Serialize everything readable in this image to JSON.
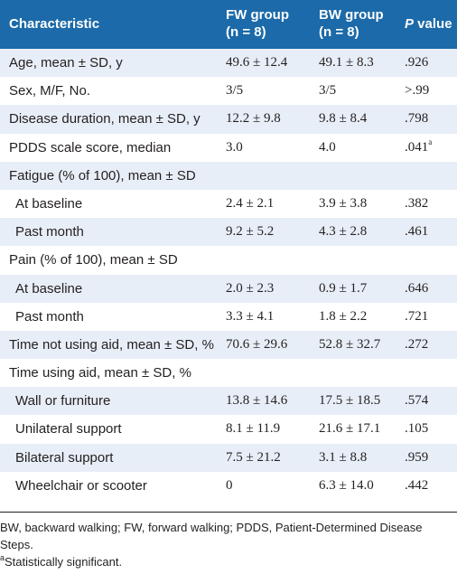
{
  "header": {
    "col1": "Characteristic",
    "col2_line1": "FW group",
    "col2_line2": "(n = 8)",
    "col3_line1": "BW group",
    "col3_line2": "(n = 8)",
    "col4_p": "P",
    "col4_rest": " value"
  },
  "rows": [
    {
      "label": "Age, mean ± SD, y",
      "fw": "49.6 ± 12.4",
      "bw": "49.1 ± 8.3",
      "p": ".926",
      "sup": ""
    },
    {
      "label": "Sex, M/F, No.",
      "fw": "3/5",
      "bw": "3/5",
      "p": ">.99",
      "sup": ""
    },
    {
      "label": "Disease duration, mean ± SD, y",
      "fw": "12.2 ± 9.8",
      "bw": "9.8 ± 8.4",
      "p": ".798",
      "sup": ""
    },
    {
      "label": "PDDS scale score, median",
      "fw": "3.0",
      "bw": "4.0",
      "p": ".041",
      "sup": "a"
    },
    {
      "label": "Fatigue (% of 100), mean ± SD",
      "fw": "",
      "bw": "",
      "p": "",
      "sup": ""
    },
    {
      "label": "At baseline",
      "fw": "2.4 ± 2.1",
      "bw": "3.9 ± 3.8",
      "p": ".382",
      "sup": ""
    },
    {
      "label": "Past month",
      "fw": "9.2 ± 5.2",
      "bw": "4.3 ± 2.8",
      "p": ".461",
      "sup": ""
    },
    {
      "label": "Pain (% of 100), mean ± SD",
      "fw": "",
      "bw": "",
      "p": "",
      "sup": ""
    },
    {
      "label": "At baseline",
      "fw": "2.0 ± 2.3",
      "bw": "0.9 ± 1.7",
      "p": ".646",
      "sup": ""
    },
    {
      "label": "Past month",
      "fw": "3.3 ± 4.1",
      "bw": "1.8 ± 2.2",
      "p": ".721",
      "sup": ""
    },
    {
      "label": "Time not using aid, mean ± SD, %",
      "fw": "70.6 ± 29.6",
      "bw": "52.8 ± 32.7",
      "p": ".272",
      "sup": ""
    },
    {
      "label": "Time using aid, mean ± SD, %",
      "fw": "",
      "bw": "",
      "p": "",
      "sup": ""
    },
    {
      "label": "Wall or furniture",
      "fw": "13.8 ± 14.6",
      "bw": "17.5 ± 18.5",
      "p": ".574",
      "sup": ""
    },
    {
      "label": "Unilateral support",
      "fw": "8.1 ± 11.9",
      "bw": "21.6 ± 17.1",
      "p": ".105",
      "sup": ""
    },
    {
      "label": "Bilateral support",
      "fw": "7.5 ± 21.2",
      "bw": "3.1 ± 8.8",
      "p": ".959",
      "sup": ""
    },
    {
      "label": "Wheelchair or scooter",
      "fw": "0",
      "bw": "6.3 ± 14.0",
      "p": ".442",
      "sup": ""
    }
  ],
  "footnotes": {
    "abbrev": "BW, backward walking; FW, forward walking; PDDS, Patient-Determined Disease Steps.",
    "sig_mark": "a",
    "sig_text": "Statistically significant."
  }
}
